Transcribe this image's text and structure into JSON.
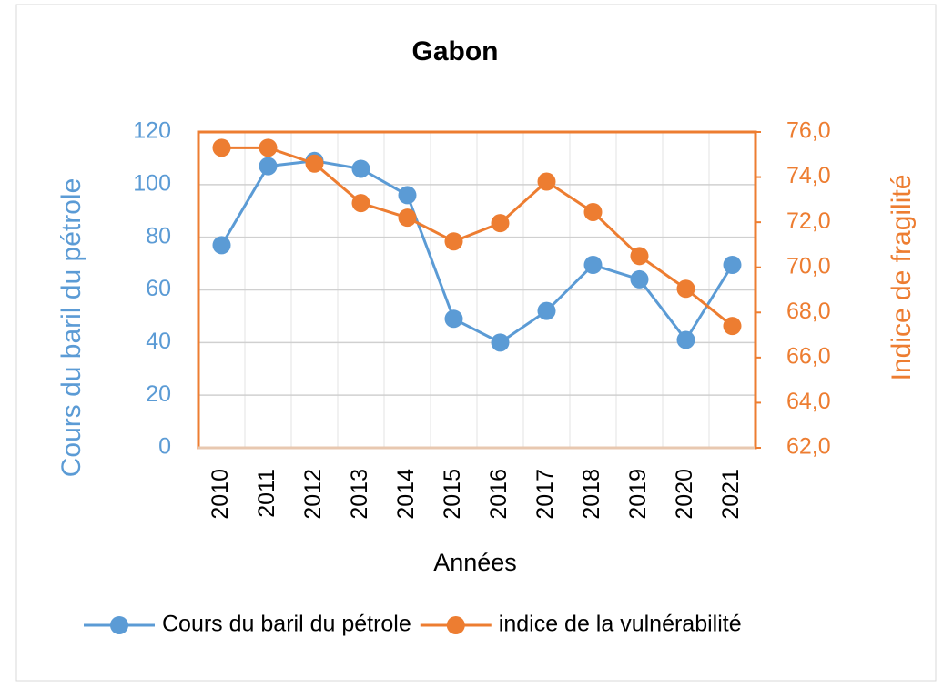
{
  "chart_data": {
    "type": "line",
    "title": "Gabon",
    "x_label": "Années",
    "y_label": "Cours du baril du pétrole",
    "y2_label": "Indice de fragilité",
    "categories": [
      "2010",
      "2011",
      "2012",
      "2013",
      "2014",
      "2015",
      "2016",
      "2017",
      "2018",
      "2019",
      "2020",
      "2021"
    ],
    "series": [
      {
        "name": "Cours du baril du pétrole",
        "color": "#5b9bd5",
        "values": [
          77,
          107,
          109,
          106,
          96,
          49,
          40,
          52,
          69.5,
          64,
          41,
          69.5
        ]
      },
      {
        "name": "indice de la vulnérabilité",
        "color": "#ed7d31",
        "axis": "y2",
        "values": [
          75.3,
          75.3,
          74.6,
          72.85,
          72.2,
          71.15,
          71.96,
          73.8,
          72.45,
          70.5,
          69.05,
          67.4
        ]
      }
    ],
    "ylim": [
      0,
      120
    ],
    "yticks": [
      0,
      20,
      40,
      60,
      80,
      100,
      120
    ],
    "y2lim": [
      62,
      76
    ],
    "y2ticks": [
      {
        "value": 62,
        "label": "62,0"
      },
      {
        "value": 64,
        "label": "64,0"
      },
      {
        "value": 66,
        "label": "66,0"
      },
      {
        "value": 68,
        "label": "68,0"
      },
      {
        "value": 70,
        "label": "70,0"
      },
      {
        "value": 72,
        "label": "72,0"
      },
      {
        "value": 74,
        "label": "74,0"
      },
      {
        "value": 76,
        "label": "76,0"
      }
    ],
    "grid": true,
    "legend": "bottom"
  }
}
